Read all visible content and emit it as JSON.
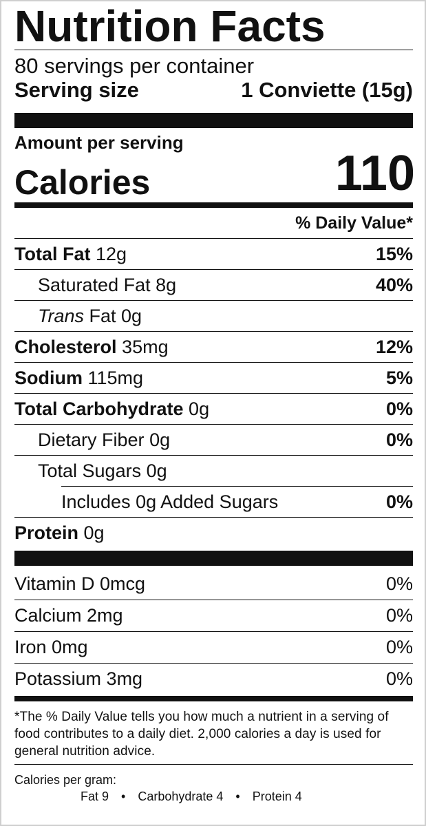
{
  "label": {
    "title": "Nutrition Facts",
    "servings_per_container": "80 servings per container",
    "serving_size_label": "Serving size",
    "serving_size_value": "1 Conviette (15g)",
    "amount_per_serving": "Amount per serving",
    "calories_label": "Calories",
    "calories_value": "110",
    "daily_value_header": "% Daily Value*"
  },
  "nutrients": [
    {
      "name": "Total Fat",
      "amount": "12g",
      "dv": "15%"
    },
    {
      "name": "Saturated Fat",
      "amount": "8g",
      "dv": "40%"
    },
    {
      "name": "Trans",
      "amount": "Fat 0g",
      "dv": ""
    },
    {
      "name": "Cholesterol",
      "amount": "35mg",
      "dv": "12%"
    },
    {
      "name": "Sodium",
      "amount": "115mg",
      "dv": "5%"
    },
    {
      "name": "Total Carbohydrate",
      "amount": "0g",
      "dv": "0%"
    },
    {
      "name": "Dietary Fiber",
      "amount": "0g",
      "dv": "0%"
    },
    {
      "name": "Total Sugars",
      "amount": "0g",
      "dv": ""
    },
    {
      "name": "Includes 0g Added Sugars",
      "amount": "",
      "dv": "0%"
    },
    {
      "name": "Protein",
      "amount": "0g",
      "dv": ""
    }
  ],
  "vitamins": [
    {
      "name": "Vitamin D 0mcg",
      "dv": "0%"
    },
    {
      "name": "Calcium 2mg",
      "dv": "0%"
    },
    {
      "name": "Iron 0mg",
      "dv": "0%"
    },
    {
      "name": "Potassium 3mg",
      "dv": "0%"
    }
  ],
  "footnote": "*The % Daily Value tells you how much a nutrient in a serving of food contributes to a daily diet. 2,000 calories a day is used for general nutrition advice.",
  "calories_per_gram": {
    "title": "Calories per gram:",
    "fat": "Fat 9",
    "carbohydrate": "Carbohydrate 4",
    "protein": "Protein 4",
    "separator": "•"
  }
}
